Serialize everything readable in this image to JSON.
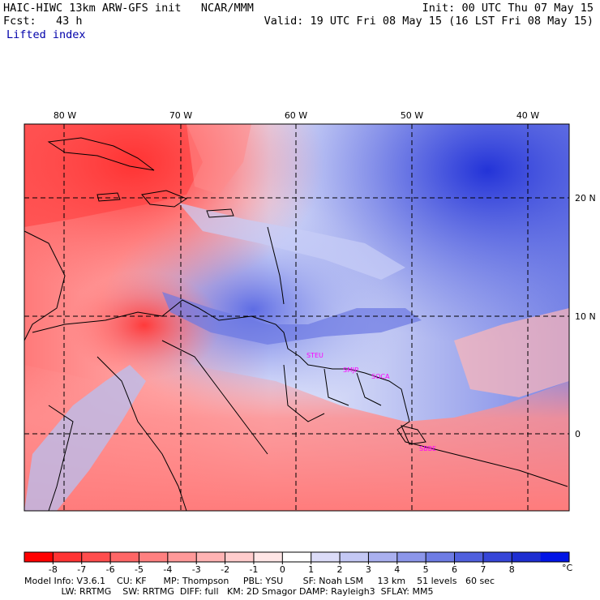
{
  "header": {
    "model_title": "HAIC-HIWC 13km ARW-GFS init   NCAR/MMM",
    "fcst": "Fcst:   43 h",
    "field": "Lifted index",
    "init": "Init: 00 UTC Thu 07 May 15",
    "valid": "Valid: 19 UTC Fri 08 May 15 (16 LST Fri 08 May 15)"
  },
  "map": {
    "lon_labels": [
      "80 W",
      "70 W",
      "60 W",
      "50 W",
      "40 W"
    ],
    "lat_labels": [
      "20 N",
      "10 N",
      "0"
    ],
    "stations": [
      "STEU",
      "SMJP",
      "SOCA",
      "SBBE"
    ],
    "colors": {
      "strong_neg": "#ff2222",
      "neg": "#ff8888",
      "neutral": "#ffffff",
      "pos": "#aab6f0",
      "strong_pos": "#1a2ad8"
    }
  },
  "colorbar": {
    "ticks": [
      "-8",
      "-7",
      "-6",
      "-5",
      "-4",
      "-3",
      "-2",
      "-1",
      "0",
      "1",
      "2",
      "3",
      "4",
      "5",
      "6",
      "7",
      "8"
    ],
    "unit": "°C",
    "colors": [
      "#ff0000",
      "#ff3333",
      "#ff4d4d",
      "#ff6666",
      "#ff8080",
      "#ff9999",
      "#ffb3b3",
      "#ffcccc",
      "#ffe6e6",
      "#ffffff",
      "#dcdcf8",
      "#c4c8f4",
      "#aab0ef",
      "#8c96ea",
      "#6e7ce4",
      "#5060de",
      "#3646d8",
      "#1e2ed2",
      "#0014e6"
    ]
  },
  "footer": {
    "line1": "Model Info: V3.6.1    CU: KF      MP: Thompson     PBL: YSU       SF: Noah LSM     13 km    51 levels   60 sec",
    "line2": "             LW: RRTMG    SW: RRTMG  DIFF: full   KM: 2D Smagor DAMP: Rayleigh3  SFLAY: MM5"
  }
}
